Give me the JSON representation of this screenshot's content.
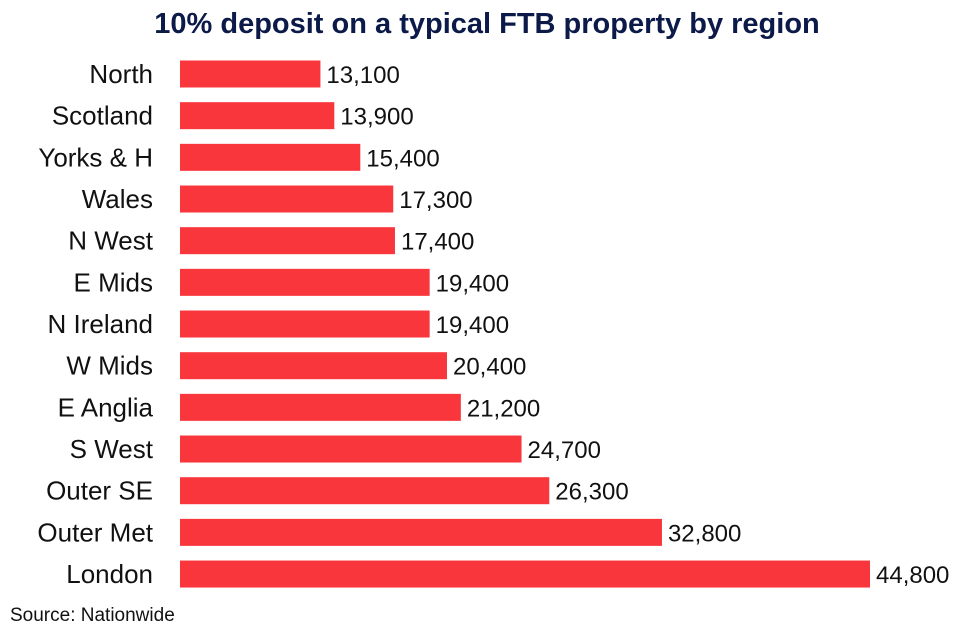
{
  "chart_data": {
    "type": "bar",
    "orientation": "horizontal",
    "title": "10% deposit on a typical FTB property by region",
    "source": "Source: Nationwide",
    "categories": [
      "North",
      "Scotland",
      "Yorks & H",
      "Wales",
      "N West",
      "E Mids",
      "N Ireland",
      "W Mids",
      "E Anglia",
      "S West",
      "Outer SE",
      "Outer Met",
      "London"
    ],
    "values": [
      13100,
      13900,
      15400,
      17300,
      17400,
      19400,
      19400,
      20400,
      21200,
      24700,
      26300,
      32800,
      44800
    ],
    "value_labels": [
      "13,100",
      "13,900",
      "15,400",
      "17,300",
      "17,400",
      "19,400",
      "19,400",
      "20,400",
      "21,200",
      "24,700",
      "26,300",
      "32,800",
      "44,800"
    ],
    "xlabel": "",
    "ylabel": "",
    "xlim": [
      5000,
      45000
    ],
    "grid": false,
    "colors": {
      "bar": "#f9363c",
      "title": "#0b1a48",
      "text": "#111111"
    }
  }
}
